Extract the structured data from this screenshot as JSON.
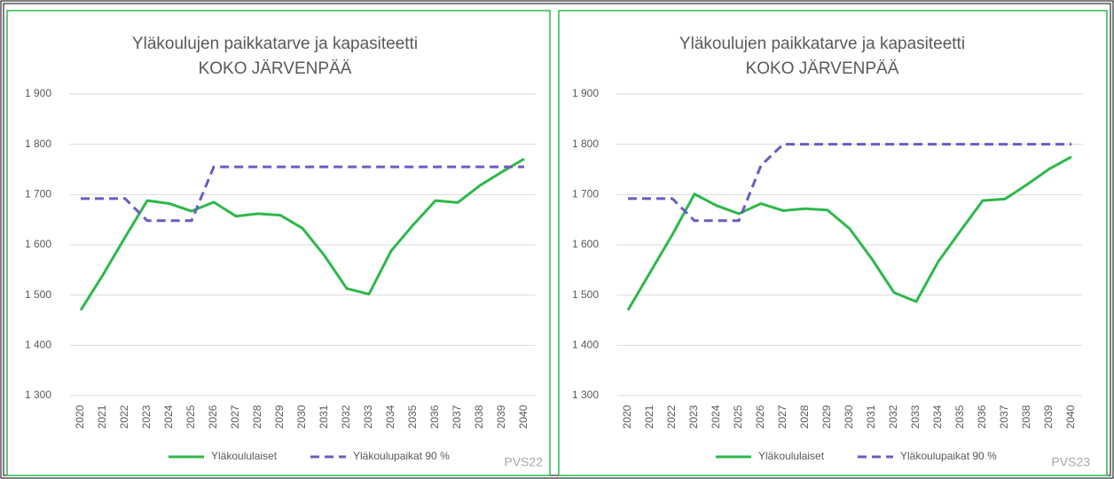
{
  "chart_data": [
    {
      "type": "line",
      "title": "Yläkoulujen paikkatarve ja kapasiteetti",
      "subtitle": "KOKO JÄRVENPÄÄ",
      "annotation": "PVS22",
      "categories": [
        "2020",
        "2021",
        "2022",
        "2023",
        "2024",
        "2025",
        "2026",
        "2027",
        "2028",
        "2029",
        "2030",
        "2031",
        "2032",
        "2033",
        "2034",
        "2035",
        "2036",
        "2037",
        "2038",
        "2039",
        "2040"
      ],
      "series": [
        {
          "name": "Yläkoululaiset",
          "color": "#2db84b",
          "dashed": false,
          "values": [
            1470,
            1540,
            1615,
            1688,
            1682,
            1667,
            1685,
            1657,
            1662,
            1659,
            1633,
            1578,
            1513,
            1502,
            1588,
            1640,
            1688,
            1684,
            1718,
            1745,
            1771
          ]
        },
        {
          "name": "Yläkoulupaikat 90 %",
          "color": "#6a5cc0",
          "dashed": true,
          "values": [
            1692,
            1692,
            1692,
            1648,
            1648,
            1648,
            1755,
            1755,
            1755,
            1755,
            1755,
            1755,
            1755,
            1755,
            1755,
            1755,
            1755,
            1755,
            1755,
            1755,
            1755
          ]
        }
      ],
      "ylim": [
        1300,
        1900
      ],
      "yticks": [
        {
          "value": 1300,
          "label": "1 300"
        },
        {
          "value": 1400,
          "label": "1 400"
        },
        {
          "value": 1500,
          "label": "1 500"
        },
        {
          "value": 1600,
          "label": "1 600"
        },
        {
          "value": 1700,
          "label": "1 700"
        },
        {
          "value": 1800,
          "label": "1 800"
        },
        {
          "value": 1900,
          "label": "1 900"
        }
      ],
      "grid": true
    },
    {
      "type": "line",
      "title": "Yläkoulujen paikkatarve ja kapasiteetti",
      "subtitle": "KOKO JÄRVENPÄÄ",
      "annotation": "PVS23",
      "categories": [
        "2020",
        "2021",
        "2022",
        "2023",
        "2024",
        "2025",
        "2026",
        "2027",
        "2028",
        "2029",
        "2030",
        "2031",
        "2032",
        "2033",
        "2034",
        "2035",
        "2036",
        "2037",
        "2038",
        "2039",
        "2040"
      ],
      "series": [
        {
          "name": "Yläkoululaiset",
          "color": "#2db84b",
          "dashed": false,
          "values": [
            1470,
            1545,
            1620,
            1701,
            1678,
            1662,
            1682,
            1668,
            1672,
            1669,
            1632,
            1572,
            1505,
            1487,
            1567,
            1628,
            1688,
            1691,
            1720,
            1751,
            1775
          ]
        },
        {
          "name": "Yläkoulupaikat 90 %",
          "color": "#6a5cc0",
          "dashed": true,
          "values": [
            1692,
            1692,
            1692,
            1648,
            1648,
            1648,
            1758,
            1800,
            1800,
            1800,
            1800,
            1800,
            1800,
            1800,
            1800,
            1800,
            1800,
            1800,
            1800,
            1800,
            1800
          ]
        }
      ],
      "ylim": [
        1300,
        1900
      ],
      "yticks": [
        {
          "value": 1300,
          "label": "1 300"
        },
        {
          "value": 1400,
          "label": "1 400"
        },
        {
          "value": 1500,
          "label": "1 500"
        },
        {
          "value": 1600,
          "label": "1 600"
        },
        {
          "value": 1700,
          "label": "1 700"
        },
        {
          "value": 1800,
          "label": "1 800"
        },
        {
          "value": 1900,
          "label": "1 900"
        }
      ],
      "grid": true
    }
  ]
}
